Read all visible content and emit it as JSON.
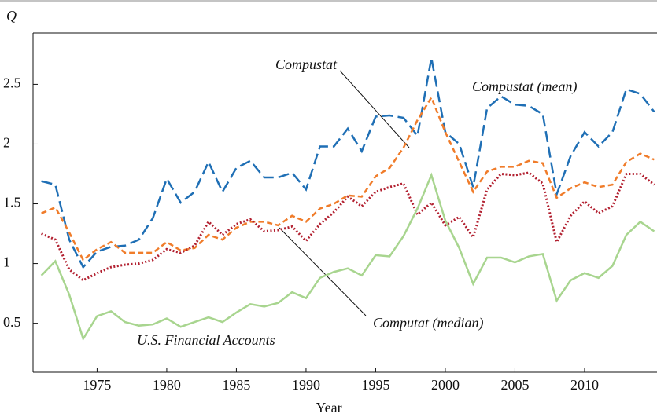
{
  "chart_data": {
    "type": "line",
    "x_label": "Year",
    "y_label": "Q",
    "x": [
      1971,
      1972,
      1973,
      1974,
      1975,
      1976,
      1977,
      1978,
      1979,
      1980,
      1981,
      1982,
      1983,
      1984,
      1985,
      1986,
      1987,
      1988,
      1989,
      1990,
      1991,
      1992,
      1993,
      1994,
      1995,
      1996,
      1997,
      1998,
      1999,
      2000,
      2001,
      2002,
      2003,
      2004,
      2005,
      2006,
      2007,
      2008,
      2009,
      2010,
      2011,
      2012,
      2013,
      2014,
      2015
    ],
    "series": [
      {
        "name": "Compustat (mean)",
        "color": "#1f6fb5",
        "style": "dashed",
        "values": [
          1.69,
          1.66,
          1.2,
          0.97,
          1.1,
          1.14,
          1.15,
          1.2,
          1.38,
          1.71,
          1.51,
          1.6,
          1.85,
          1.6,
          1.8,
          1.86,
          1.72,
          1.72,
          1.76,
          1.62,
          1.98,
          1.98,
          2.13,
          1.94,
          2.23,
          2.24,
          2.22,
          2.07,
          2.72,
          2.1,
          2.0,
          1.64,
          2.3,
          2.4,
          2.33,
          2.32,
          2.25,
          1.58,
          1.9,
          2.1,
          1.98,
          2.1,
          2.46,
          2.42,
          2.27
        ]
      },
      {
        "name": "Compustat",
        "color": "#f07c2a",
        "style": "dashed-short",
        "values": [
          1.42,
          1.47,
          1.26,
          1.03,
          1.12,
          1.18,
          1.09,
          1.09,
          1.09,
          1.18,
          1.11,
          1.13,
          1.24,
          1.2,
          1.3,
          1.35,
          1.35,
          1.32,
          1.4,
          1.35,
          1.46,
          1.5,
          1.57,
          1.56,
          1.73,
          1.8,
          1.97,
          2.2,
          2.39,
          2.1,
          1.85,
          1.6,
          1.77,
          1.81,
          1.81,
          1.86,
          1.84,
          1.55,
          1.63,
          1.68,
          1.64,
          1.66,
          1.85,
          1.92,
          1.87
        ]
      },
      {
        "name": "Computat (median)",
        "color": "#b22030",
        "style": "dotted",
        "values": [
          1.25,
          1.2,
          0.95,
          0.86,
          0.92,
          0.97,
          0.99,
          1.0,
          1.03,
          1.12,
          1.09,
          1.15,
          1.35,
          1.24,
          1.33,
          1.37,
          1.27,
          1.28,
          1.31,
          1.19,
          1.33,
          1.43,
          1.56,
          1.48,
          1.6,
          1.64,
          1.67,
          1.41,
          1.51,
          1.32,
          1.39,
          1.22,
          1.62,
          1.75,
          1.74,
          1.76,
          1.67,
          1.18,
          1.4,
          1.52,
          1.42,
          1.48,
          1.75,
          1.75,
          1.66
        ]
      },
      {
        "name": "U.S. Financial Accounts",
        "color": "#a8d58f",
        "style": "solid",
        "values": [
          0.9,
          1.02,
          0.74,
          0.37,
          0.56,
          0.6,
          0.51,
          0.48,
          0.49,
          0.54,
          0.47,
          0.51,
          0.55,
          0.51,
          0.59,
          0.66,
          0.64,
          0.67,
          0.76,
          0.71,
          0.88,
          0.93,
          0.96,
          0.9,
          1.07,
          1.06,
          1.23,
          1.46,
          1.74,
          1.36,
          1.13,
          0.83,
          1.05,
          1.05,
          1.01,
          1.06,
          1.08,
          0.69,
          0.86,
          0.92,
          0.88,
          0.98,
          1.24,
          1.35,
          1.27
        ]
      }
    ],
    "xlim": [
      1970.4,
      2015.2
    ],
    "ylim": [
      0.09,
      2.93
    ],
    "xticks": [
      1975,
      1980,
      1985,
      1990,
      1995,
      2000,
      2005,
      2010
    ],
    "yticks": [
      0.5,
      1,
      1.5,
      2,
      2.5
    ]
  }
}
